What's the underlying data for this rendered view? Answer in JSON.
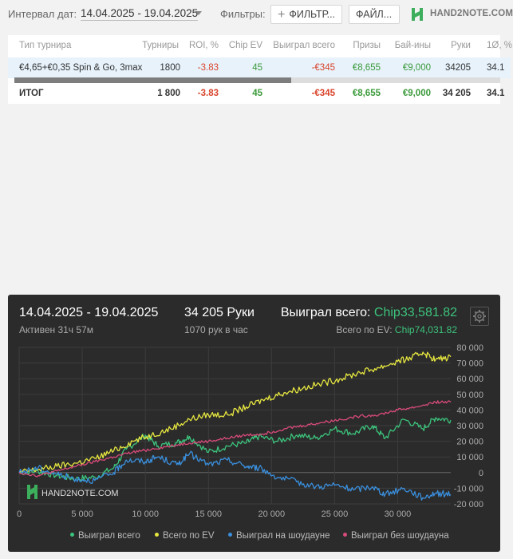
{
  "topbar": {
    "interval_label": "Интервал дат:",
    "date_range": "14.04.2025 - 19.04.2025",
    "filters_label": "Фильтры:",
    "filter_button": "ФИЛЬТР...",
    "file_button": "ФАЙЛ...",
    "logo_text": "HAND2NOTE.COM"
  },
  "table": {
    "columns": [
      "Тип турнира",
      "Турниры",
      "ROI, %",
      "Chip EV",
      "Выиграл всего",
      "Призы",
      "Бай-ины",
      "Руки",
      "1Ø, %"
    ],
    "row": [
      "€4,65+€0,35 Spin & Go, 3max",
      "1800",
      "-3.83",
      "45",
      "-€345",
      "€8,655",
      "€9,000",
      "34205",
      "34.1"
    ],
    "total": [
      "ИТОГ",
      "1 800",
      "-3.83",
      "45",
      "-€345",
      "€8,655",
      "€9,000",
      "34 205",
      "34.1"
    ],
    "scroll_position": 0.57
  },
  "panel": {
    "date": "14.04.2025 - 19.04.2025",
    "active": "Активен 31ч 57м",
    "hands": "34 205 Руки",
    "rate": "1070 рук в час",
    "won_label": "Выиграл всего:",
    "won_value": "Chip33,581.82",
    "ev_label": "Всего по EV:",
    "ev_value": "Chip74,031.82",
    "watermark": "HAND2NOTE.COM"
  },
  "chart_data": {
    "type": "line",
    "xlim": [
      0,
      34205
    ],
    "ylim": [
      -20000,
      80000
    ],
    "x_ticks": [
      "0",
      "5 000",
      "10 000",
      "15 000",
      "20 000",
      "25 000",
      "30 000"
    ],
    "y_ticks": [
      "80 000",
      "70 000",
      "60 000",
      "50 000",
      "40 000",
      "30 000",
      "20 000",
      "10 000",
      "0",
      "-10 000",
      "-20 000"
    ],
    "grid": true,
    "legend_position": "bottom",
    "series": [
      {
        "name": "Выиграл всего",
        "color": "#3cc47c",
        "x": [
          0,
          1500,
          3000,
          4500,
          6000,
          7500,
          8500,
          10000,
          11000,
          12500,
          13500,
          15000,
          16500,
          18000,
          19000,
          20500,
          22000,
          23500,
          25000,
          26500,
          28000,
          29000,
          30500,
          32000,
          33000,
          34205
        ],
        "y": [
          0,
          1000,
          -2000,
          -4000,
          -3000,
          3000,
          15000,
          24000,
          17000,
          19000,
          23000,
          13000,
          17000,
          19000,
          23000,
          20000,
          24000,
          22000,
          28000,
          25000,
          30000,
          22000,
          34000,
          28000,
          35000,
          33582
        ]
      },
      {
        "name": "Всего по EV",
        "color": "#e6e640",
        "x": [
          0,
          1500,
          3000,
          4500,
          6000,
          7500,
          9000,
          10500,
          12000,
          13500,
          15000,
          16500,
          18000,
          19500,
          21000,
          22500,
          24000,
          25500,
          27000,
          28500,
          30000,
          31000,
          32000,
          33000,
          34205
        ],
        "y": [
          0,
          2000,
          4000,
          6000,
          9000,
          14000,
          20000,
          24000,
          28000,
          34000,
          37000,
          37000,
          42000,
          47000,
          51000,
          54000,
          57000,
          60000,
          64000,
          67000,
          71000,
          73000,
          77000,
          72000,
          74032
        ]
      },
      {
        "name": "Выиграл на шоудауне",
        "color": "#3a8fdd",
        "x": [
          0,
          1500,
          3000,
          4500,
          6000,
          7500,
          8500,
          10000,
          11000,
          12500,
          13500,
          15000,
          16500,
          18000,
          19000,
          20500,
          22000,
          23500,
          25000,
          26500,
          28000,
          29000,
          30500,
          32000,
          33000,
          34205
        ],
        "y": [
          0,
          3000,
          -1000,
          -4000,
          -5000,
          0,
          8000,
          7000,
          10000,
          5000,
          12000,
          5000,
          8000,
          4000,
          3000,
          -3000,
          -6000,
          -9000,
          -8000,
          -11000,
          -9000,
          -14000,
          -10000,
          -16000,
          -13000,
          -14000
        ]
      },
      {
        "name": "Выиграл без шоудауна",
        "color": "#d84a7a",
        "x": [
          0,
          1500,
          3000,
          4500,
          6000,
          7500,
          9000,
          10500,
          12000,
          13500,
          15000,
          16500,
          18000,
          19500,
          21000,
          22500,
          24000,
          25500,
          27000,
          28500,
          30000,
          31500,
          33000,
          34205
        ],
        "y": [
          0,
          -2000,
          1000,
          4000,
          7000,
          10000,
          13000,
          15000,
          17000,
          19000,
          20000,
          22000,
          24000,
          25000,
          28000,
          30000,
          32000,
          34000,
          36000,
          37000,
          40000,
          42000,
          45000,
          45000
        ]
      }
    ]
  }
}
